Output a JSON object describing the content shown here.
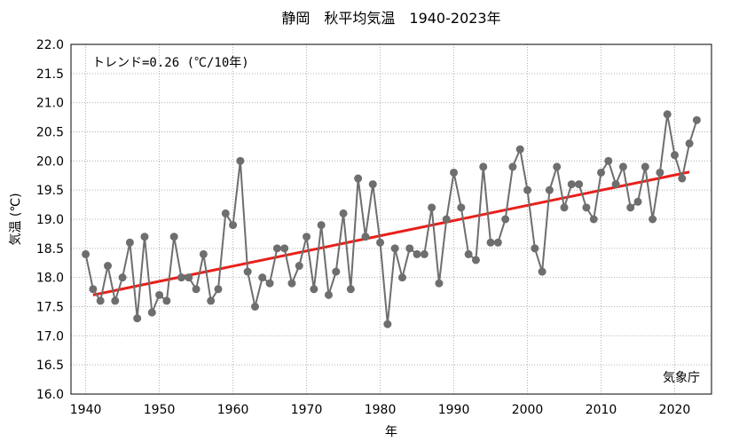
{
  "chart_data": {
    "type": "line",
    "title": "静岡　秋平均気温　1940-2023年",
    "xlabel": "年",
    "ylabel": "気温 (℃)",
    "trend_label": "トレンド=0.26 (℃/10年)",
    "source_label": "気象庁",
    "xlim": [
      1938,
      2025
    ],
    "ylim": [
      16.0,
      22.0
    ],
    "x_ticks": [
      1940,
      1950,
      1960,
      1970,
      1980,
      1990,
      2000,
      2010,
      2020
    ],
    "y_ticks": [
      "16.0",
      "16.5",
      "17.0",
      "17.5",
      "18.0",
      "18.5",
      "19.0",
      "19.5",
      "20.0",
      "20.5",
      "21.0",
      "21.5",
      "22.0"
    ],
    "grid": true,
    "series": [
      {
        "color": "#6e6e6e",
        "x": [
          1940,
          1941,
          1942,
          1943,
          1944,
          1945,
          1946,
          1947,
          1948,
          1949,
          1950,
          1951,
          1952,
          1953,
          1954,
          1955,
          1956,
          1957,
          1958,
          1959,
          1960,
          1961,
          1962,
          1963,
          1964,
          1965,
          1966,
          1967,
          1968,
          1969,
          1970,
          1971,
          1972,
          1973,
          1974,
          1975,
          1976,
          1977,
          1978,
          1979,
          1980,
          1981,
          1982,
          1983,
          1984,
          1985,
          1986,
          1987,
          1988,
          1989,
          1990,
          1991,
          1992,
          1993,
          1994,
          1995,
          1996,
          1997,
          1998,
          1999,
          2000,
          2001,
          2002,
          2003,
          2004,
          2005,
          2006,
          2007,
          2008,
          2009,
          2010,
          2011,
          2012,
          2013,
          2014,
          2015,
          2016,
          2017,
          2018,
          2019,
          2020,
          2021,
          2022,
          2023
        ],
        "values": [
          18.4,
          17.8,
          17.6,
          18.2,
          17.6,
          18.0,
          18.6,
          17.3,
          18.7,
          17.4,
          17.7,
          17.6,
          18.7,
          18.0,
          18.0,
          17.8,
          18.4,
          17.6,
          17.8,
          19.1,
          18.9,
          20.0,
          18.1,
          17.5,
          18.0,
          17.9,
          18.5,
          18.5,
          17.9,
          18.2,
          18.7,
          17.8,
          18.9,
          17.7,
          18.1,
          19.1,
          17.8,
          19.7,
          18.7,
          19.6,
          18.6,
          17.2,
          18.5,
          18.0,
          18.5,
          18.4,
          18.4,
          19.2,
          17.9,
          19.0,
          19.8,
          19.2,
          18.4,
          18.3,
          19.9,
          18.6,
          18.6,
          19.0,
          19.9,
          20.2,
          19.5,
          18.5,
          18.1,
          19.5,
          19.9,
          19.2,
          19.6,
          19.6,
          19.2,
          19.0,
          19.8,
          20.0,
          19.6,
          19.9,
          19.2,
          19.3,
          19.9,
          19.0,
          19.8,
          20.8,
          20.1,
          19.7,
          20.3,
          20.7
        ]
      }
    ],
    "trend": {
      "color": "#e8201a",
      "x": [
        1941,
        2022
      ],
      "values": [
        17.7,
        19.81
      ]
    }
  }
}
